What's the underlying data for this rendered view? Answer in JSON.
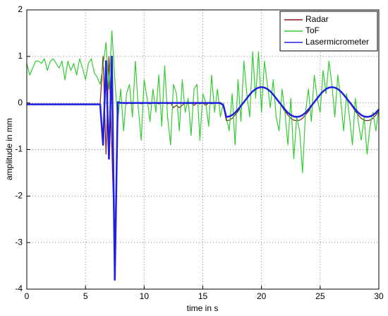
{
  "chart_data": {
    "type": "line",
    "xlabel": "time in s",
    "ylabel": "amplitude in mm",
    "x": [
      0,
      0.25,
      0.5,
      0.75,
      1,
      1.25,
      1.5,
      1.75,
      2,
      2.25,
      2.5,
      2.75,
      3,
      3.25,
      3.5,
      3.75,
      4,
      4.25,
      4.5,
      4.75,
      5,
      5.25,
      5.5,
      5.75,
      6,
      6.25,
      6.5,
      6.75,
      7,
      7.25,
      7.5,
      7.75,
      8,
      8.25,
      8.5,
      8.75,
      9,
      9.25,
      9.5,
      9.75,
      10,
      10.25,
      10.5,
      10.75,
      11,
      11.25,
      11.5,
      11.75,
      12,
      12.25,
      12.5,
      12.75,
      13,
      13.25,
      13.5,
      13.75,
      14,
      14.25,
      14.5,
      14.75,
      15,
      15.25,
      15.5,
      15.75,
      16,
      16.25,
      16.5,
      16.75,
      17,
      17.25,
      17.5,
      17.75,
      18,
      18.25,
      18.5,
      18.75,
      19,
      19.25,
      19.5,
      19.75,
      20,
      20.25,
      20.5,
      20.75,
      21,
      21.25,
      21.5,
      21.75,
      22,
      22.25,
      22.5,
      22.75,
      23,
      23.25,
      23.5,
      23.75,
      24,
      24.25,
      24.5,
      24.75,
      25,
      25.25,
      25.5,
      25.75,
      26,
      26.25,
      26.5,
      26.75,
      27,
      27.25,
      27.5,
      27.75,
      28,
      28.25,
      28.5,
      28.75,
      29,
      29.25,
      29.5,
      29.75,
      30
    ],
    "series": [
      {
        "name": "Radar",
        "color": "#8b1a1a",
        "values": [
          -0.02,
          -0.02,
          -0.02,
          -0.02,
          -0.02,
          -0.02,
          -0.02,
          -0.02,
          -0.02,
          -0.02,
          -0.02,
          -0.02,
          -0.02,
          -0.02,
          -0.02,
          -0.02,
          -0.02,
          -0.02,
          -0.02,
          -0.02,
          -0.02,
          -0.02,
          -0.02,
          -0.02,
          -0.02,
          -0.02,
          1.0,
          -1.1,
          1.0,
          -1.0,
          -3.2,
          0.0,
          0.0,
          0.0,
          -0.02,
          0.0,
          -0.02,
          0.0,
          0.0,
          -0.02,
          0.0,
          0.0,
          -0.02,
          0.0,
          0.0,
          -0.02,
          0.0,
          0.0,
          -0.02,
          0.0,
          -0.1,
          -0.05,
          -0.1,
          -0.05,
          0.0,
          -0.02,
          0.0,
          -0.05,
          0.0,
          -0.02,
          0.0,
          -0.05,
          0.0,
          -0.02,
          0.0,
          0.0,
          -0.02,
          -0.05,
          -0.38,
          -0.37,
          -0.33,
          -0.26,
          -0.18,
          -0.08,
          0.02,
          0.1,
          0.18,
          0.25,
          0.3,
          0.33,
          0.34,
          0.33,
          0.3,
          0.25,
          0.18,
          0.1,
          0.02,
          -0.08,
          -0.18,
          -0.26,
          -0.33,
          -0.37,
          -0.38,
          -0.37,
          -0.33,
          -0.26,
          -0.18,
          -0.08,
          0.02,
          0.1,
          0.18,
          0.25,
          0.3,
          0.33,
          0.34,
          0.33,
          0.3,
          0.25,
          0.18,
          0.1,
          0.02,
          -0.08,
          -0.18,
          -0.26,
          -0.33,
          -0.37,
          -0.38,
          -0.37,
          -0.33,
          -0.26,
          -0.18
        ]
      },
      {
        "name": "ToF",
        "color": "#33cc33",
        "values": [
          0.85,
          0.6,
          0.75,
          0.9,
          0.9,
          0.85,
          0.95,
          0.7,
          0.9,
          0.95,
          0.85,
          0.75,
          0.9,
          0.5,
          0.9,
          0.7,
          0.85,
          0.6,
          0.95,
          0.75,
          0.5,
          0.85,
          0.95,
          0.65,
          0.55,
          0.4,
          0.8,
          1.3,
          0.3,
          1.55,
          0.5,
          -0.4,
          0.3,
          -0.6,
          0.2,
          0.4,
          -0.3,
          0.9,
          -0.1,
          -0.8,
          0.5,
          0.1,
          -0.4,
          0.3,
          -0.2,
          0.6,
          -0.5,
          0.8,
          -0.3,
          -0.9,
          0.4,
          0.2,
          -0.6,
          0.5,
          -0.2,
          0.1,
          -0.7,
          0.3,
          0.4,
          -0.8,
          0.2,
          0.0,
          -0.5,
          0.6,
          -0.2,
          0.3,
          -0.3,
          0.0,
          -0.3,
          -0.6,
          0.2,
          -0.9,
          0.5,
          -0.4,
          0.9,
          0.2,
          -0.3,
          1.1,
          0.1,
          1.1,
          -0.2,
          0.9,
          0.4,
          -0.1,
          0.5,
          -0.3,
          -0.6,
          0.3,
          -0.2,
          -0.9,
          0.1,
          -1.2,
          -0.3,
          -0.6,
          -1.5,
          -0.2,
          0.3,
          -0.4,
          0.6,
          0.1,
          -0.2,
          0.7,
          0.2,
          0.9,
          0.4,
          -0.3,
          0.6,
          0.1,
          -0.6,
          0.2,
          -0.3,
          -0.9,
          0.1,
          -0.4,
          -0.8,
          -0.3,
          -1.1,
          -0.5,
          -0.2,
          -0.6,
          -0.1
        ]
      },
      {
        "name": "Lasermicrometer",
        "color": "#2020e0",
        "values": [
          -0.03,
          -0.03,
          -0.03,
          -0.03,
          -0.03,
          -0.03,
          -0.03,
          -0.03,
          -0.03,
          -0.03,
          -0.03,
          -0.03,
          -0.03,
          -0.03,
          -0.03,
          -0.03,
          -0.03,
          -0.03,
          -0.03,
          -0.03,
          -0.03,
          -0.03,
          -0.03,
          -0.03,
          -0.03,
          -0.03,
          -0.9,
          0.9,
          -1.2,
          1.0,
          -3.8,
          0.02,
          0.0,
          0.0,
          0.0,
          0.0,
          0.0,
          0.0,
          0.0,
          0.0,
          0.0,
          0.0,
          0.0,
          0.0,
          0.0,
          0.0,
          0.0,
          0.0,
          0.0,
          0.0,
          0.0,
          0.0,
          0.0,
          0.0,
          0.0,
          0.0,
          0.0,
          0.0,
          0.0,
          0.0,
          0.0,
          0.0,
          0.0,
          0.0,
          0.0,
          0.0,
          0.0,
          -0.05,
          -0.3,
          -0.29,
          -0.26,
          -0.21,
          -0.14,
          -0.06,
          0.02,
          0.1,
          0.18,
          0.25,
          0.3,
          0.33,
          0.34,
          0.33,
          0.3,
          0.25,
          0.18,
          0.1,
          0.02,
          -0.06,
          -0.14,
          -0.21,
          -0.26,
          -0.29,
          -0.3,
          -0.29,
          -0.26,
          -0.21,
          -0.14,
          -0.06,
          0.02,
          0.1,
          0.18,
          0.25,
          0.3,
          0.33,
          0.34,
          0.33,
          0.3,
          0.25,
          0.18,
          0.1,
          0.02,
          -0.06,
          -0.14,
          -0.21,
          -0.26,
          -0.29,
          -0.3,
          -0.29,
          -0.26,
          -0.21,
          -0.14
        ]
      }
    ],
    "xlim": [
      0,
      30
    ],
    "xticks": [
      0,
      5,
      10,
      15,
      20,
      25,
      30
    ],
    "ylim": [
      -4,
      2
    ],
    "yticks": [
      -4,
      -3,
      -2,
      -1,
      0,
      1,
      2
    ],
    "grid": true,
    "legend": "upper right"
  }
}
